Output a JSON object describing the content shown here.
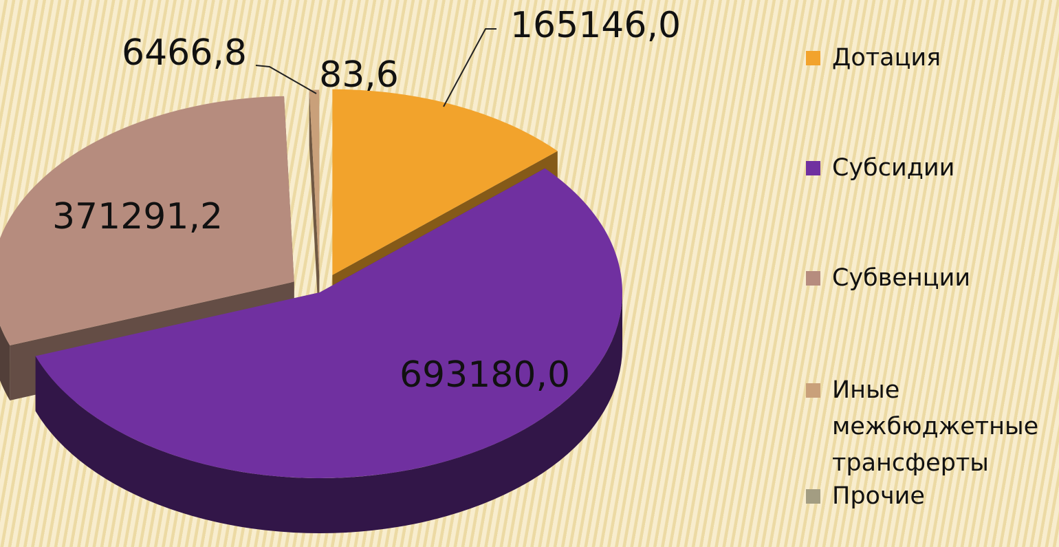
{
  "chart_data": {
    "type": "pie",
    "categories": [
      "Дотация",
      "Субсидии",
      "Субвенции",
      "Иные межбюджетные трансферты",
      "Прочие"
    ],
    "values": [
      165146.0,
      693180.0,
      371291.2,
      6466.8,
      83.6
    ],
    "value_labels": [
      "165146,0",
      "693180,0",
      "371291,2",
      "6466,8",
      "83,6"
    ],
    "colors": [
      "#f2a32c",
      "#7030a0",
      "#b68c7e",
      "#c9a07a",
      "#a39d82"
    ],
    "legend": "right"
  }
}
